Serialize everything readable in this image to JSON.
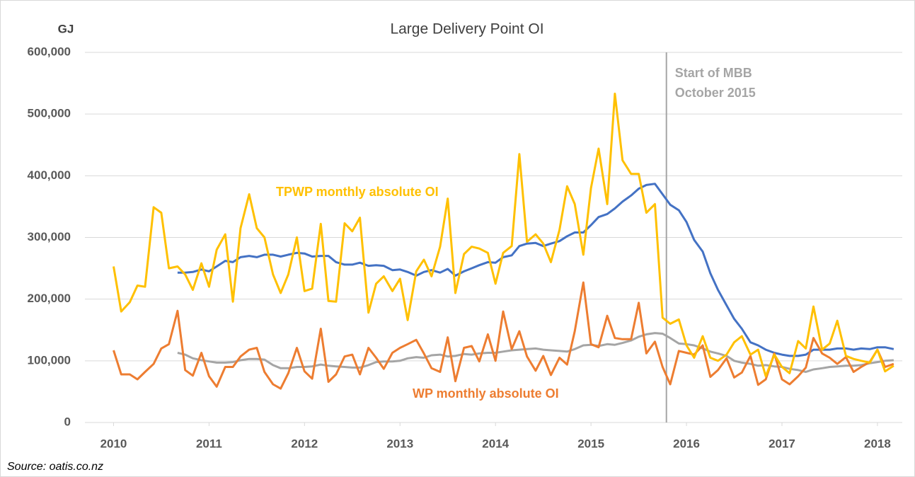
{
  "chart_data": {
    "type": "line",
    "title": "Large Delivery Point OI",
    "ylabel": "GJ",
    "source": "Source:  oatis.co.nz",
    "xlim": [
      2009.7,
      2018.26
    ],
    "xticks": [
      2010,
      2011,
      2012,
      2013,
      2014,
      2015,
      2016,
      2017,
      2018
    ],
    "ylim": [
      0,
      600000
    ],
    "yticks": [
      0,
      {
        "value": 100000,
        "label": "100,000"
      },
      {
        "value": 200000,
        "label": "200,000"
      },
      {
        "value": 300000,
        "label": "300,000"
      },
      {
        "value": 400000,
        "label": "400,000"
      },
      {
        "value": 500000,
        "label": "500,000"
      },
      {
        "value": 600000,
        "label": "600,000"
      }
    ],
    "grid": true,
    "x": [
      2010,
      2010.08,
      2010.17,
      2010.25,
      2010.33,
      2010.42,
      2010.5,
      2010.58,
      2010.67,
      2010.75,
      2010.83,
      2010.92,
      2011,
      2011.08,
      2011.17,
      2011.25,
      2011.33,
      2011.42,
      2011.5,
      2011.58,
      2011.67,
      2011.75,
      2011.83,
      2011.92,
      2012,
      2012.08,
      2012.17,
      2012.25,
      2012.33,
      2012.42,
      2012.5,
      2012.58,
      2012.67,
      2012.75,
      2012.83,
      2012.92,
      2013,
      2013.08,
      2013.17,
      2013.25,
      2013.33,
      2013.42,
      2013.5,
      2013.58,
      2013.67,
      2013.75,
      2013.83,
      2013.92,
      2014,
      2014.08,
      2014.17,
      2014.25,
      2014.33,
      2014.42,
      2014.5,
      2014.58,
      2014.67,
      2014.75,
      2014.83,
      2014.92,
      2015,
      2015.08,
      2015.17,
      2015.25,
      2015.33,
      2015.42,
      2015.5,
      2015.58,
      2015.67,
      2015.75,
      2015.83,
      2015.92,
      2016,
      2016.08,
      2016.17,
      2016.25,
      2016.33,
      2016.42,
      2016.5,
      2016.58,
      2016.67,
      2016.75,
      2016.83,
      2016.92,
      2017,
      2017.08,
      2017.17,
      2017.25,
      2017.33,
      2017.42,
      2017.5,
      2017.58,
      2017.67,
      2017.75,
      2017.83,
      2017.92,
      2018,
      2018.08,
      2018.17
    ],
    "series": [
      {
        "name": "TPWP monthly absolute OI",
        "color": "#ffc000",
        "values": [
          253000,
          180000,
          195000,
          222000,
          220000,
          349000,
          340000,
          250000,
          253000,
          240000,
          215000,
          258000,
          220000,
          280000,
          305000,
          196000,
          315000,
          370000,
          315000,
          300000,
          240000,
          210000,
          240000,
          300000,
          213000,
          217000,
          322000,
          197000,
          196000,
          323000,
          310000,
          332000,
          178000,
          225000,
          237000,
          213000,
          233000,
          166000,
          245000,
          264000,
          237000,
          285000,
          363000,
          210000,
          273000,
          285000,
          282000,
          275000,
          225000,
          275000,
          286000,
          435000,
          293000,
          305000,
          290000,
          260000,
          312000,
          383000,
          354000,
          272000,
          380000,
          444000,
          354000,
          533000,
          425000,
          403000,
          403000,
          340000,
          354000,
          170000,
          160000,
          167000,
          125000,
          105000,
          140000,
          105000,
          100000,
          110000,
          130000,
          140000,
          110000,
          118000,
          75000,
          110000,
          90000,
          80000,
          132000,
          120000,
          188000,
          118000,
          128000,
          165000,
          108000,
          103000,
          100000,
          97000,
          118000,
          83000,
          92000
        ]
      },
      {
        "name": "WP monthly absolute OI",
        "color": "#ed7d31",
        "values": [
          117000,
          78000,
          78000,
          70000,
          82000,
          95000,
          120000,
          127000,
          181000,
          85000,
          76000,
          113000,
          75000,
          58000,
          90000,
          90000,
          107000,
          118000,
          121000,
          82000,
          62000,
          55000,
          80000,
          121000,
          83000,
          71000,
          152000,
          66000,
          78000,
          107000,
          110000,
          78000,
          121000,
          105000,
          87000,
          113000,
          121000,
          127000,
          134000,
          112000,
          88000,
          82000,
          138000,
          67000,
          121000,
          124000,
          99000,
          143000,
          100000,
          180000,
          119000,
          148000,
          107000,
          84000,
          108000,
          77000,
          105000,
          94000,
          148000,
          227000,
          127000,
          122000,
          173000,
          137000,
          135000,
          135000,
          194000,
          112000,
          131000,
          90000,
          62000,
          116000,
          113000,
          110000,
          125000,
          74000,
          85000,
          104000,
          73000,
          81000,
          108000,
          61000,
          70000,
          112000,
          70000,
          62000,
          75000,
          89000,
          137000,
          112000,
          105000,
          95000,
          106000,
          82000,
          90000,
          98000,
          118000,
          90000,
          95000
        ]
      },
      {
        "color": "#4472c4",
        "values": [
          null,
          null,
          null,
          null,
          null,
          null,
          null,
          null,
          243000,
          243000,
          244000,
          248000,
          245000,
          253000,
          262000,
          260000,
          268000,
          270000,
          268000,
          272000,
          272000,
          269000,
          272000,
          275000,
          274000,
          269000,
          270000,
          270000,
          260000,
          256000,
          256000,
          259000,
          254000,
          255000,
          254000,
          247000,
          248000,
          244000,
          238000,
          244000,
          247000,
          243000,
          249000,
          238000,
          245000,
          250000,
          255000,
          260000,
          259000,
          268000,
          271000,
          286000,
          290000,
          291000,
          286000,
          290000,
          294000,
          302000,
          308000,
          308000,
          320000,
          333000,
          338000,
          347000,
          358000,
          368000,
          379000,
          385000,
          387000,
          370000,
          353000,
          344000,
          325000,
          296000,
          277000,
          242000,
          215000,
          190000,
          168000,
          152000,
          130000,
          125000,
          118000,
          113000,
          110000,
          108000,
          108000,
          110000,
          118000,
          118000,
          118000,
          120000,
          120000,
          118000,
          120000,
          119000,
          122000,
          122000,
          119000
        ]
      },
      {
        "color": "#a5a5a5",
        "values": [
          null,
          null,
          null,
          null,
          null,
          null,
          null,
          null,
          113000,
          110000,
          104000,
          101000,
          99000,
          97000,
          97000,
          98000,
          101000,
          103000,
          103000,
          102000,
          93000,
          88000,
          88000,
          90000,
          90000,
          91000,
          94000,
          92000,
          91000,
          90000,
          89000,
          89000,
          93000,
          98000,
          99000,
          99000,
          100000,
          104000,
          106000,
          105000,
          109000,
          110000,
          107000,
          108000,
          111000,
          110000,
          112000,
          113000,
          113000,
          115000,
          117000,
          118000,
          119000,
          120000,
          118000,
          117000,
          116000,
          115000,
          119000,
          125000,
          126000,
          124000,
          127000,
          126000,
          129000,
          133000,
          139000,
          143000,
          145000,
          144000,
          137000,
          128000,
          127000,
          125000,
          120000,
          115000,
          112000,
          108000,
          100000,
          97000,
          95000,
          92000,
          93000,
          91000,
          90000,
          87000,
          85000,
          82000,
          86000,
          88000,
          90000,
          91000,
          92000,
          92000,
          93000,
          96000,
          98000,
          100000,
          101000
        ]
      }
    ],
    "annotation": {
      "text": [
        "Start of MBB",
        "October 2015"
      ],
      "x": 2015.79,
      "color": "#a5a5a5"
    }
  }
}
